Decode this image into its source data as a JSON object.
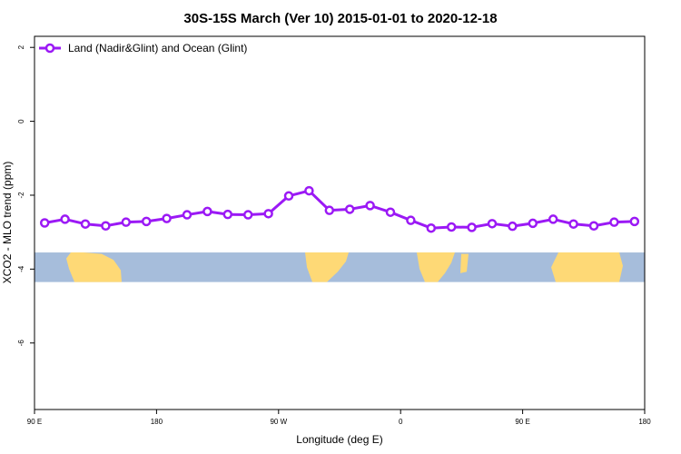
{
  "chart_data": {
    "type": "line",
    "title": "30S-15S March (Ver 10)   2015-01-01 to 2020-12-18",
    "xlabel": "Longitude (deg E)",
    "ylabel": "XCO2 - MLO trend (ppm)",
    "xlim": [
      90,
      450
    ],
    "ylim": [
      -7.8,
      2.3
    ],
    "x_ticks": [
      {
        "value": 90,
        "label": "90 E"
      },
      {
        "value": 162,
        "label": "180"
      },
      {
        "value": 234,
        "label": "90 W"
      },
      {
        "value": 306,
        "label": "0"
      },
      {
        "value": 378,
        "label": "90 E"
      },
      {
        "value": 450,
        "label": "180"
      }
    ],
    "y_ticks": [
      {
        "value": 2,
        "label": "2"
      },
      {
        "value": 0,
        "label": "0"
      },
      {
        "value": -2,
        "label": "-2"
      },
      {
        "value": -4,
        "label": "-4"
      },
      {
        "value": -6,
        "label": "-6"
      }
    ],
    "map_band": {
      "y_top": -3.55,
      "y_bottom": -4.35,
      "ocean_color": "#a6bddb",
      "land_color": "#fed976"
    },
    "legend": {
      "placement": "top-left",
      "label": "Land (Nadir&Glint) and Ocean (Glint)"
    },
    "series": [
      {
        "name": "Land (Nadir&Glint) and Ocean (Glint)",
        "color": "#9b19f5",
        "x": [
          96,
          108,
          120,
          132,
          144,
          156,
          168,
          180,
          192,
          204,
          216,
          228,
          240,
          252,
          264,
          276,
          288,
          300,
          312,
          324,
          336,
          348,
          360,
          372,
          384,
          396,
          408,
          420,
          432,
          444
        ],
        "y": [
          -2.75,
          -2.65,
          -2.78,
          -2.83,
          -2.73,
          -2.71,
          -2.63,
          -2.53,
          -2.44,
          -2.52,
          -2.53,
          -2.5,
          -2.02,
          -1.88,
          -2.41,
          -2.38,
          -2.28,
          -2.46,
          -2.68,
          -2.89,
          -2.86,
          -2.87,
          -2.77,
          -2.84,
          -2.76,
          -2.65,
          -2.78,
          -2.83,
          -2.73,
          -2.71
        ]
      }
    ]
  }
}
